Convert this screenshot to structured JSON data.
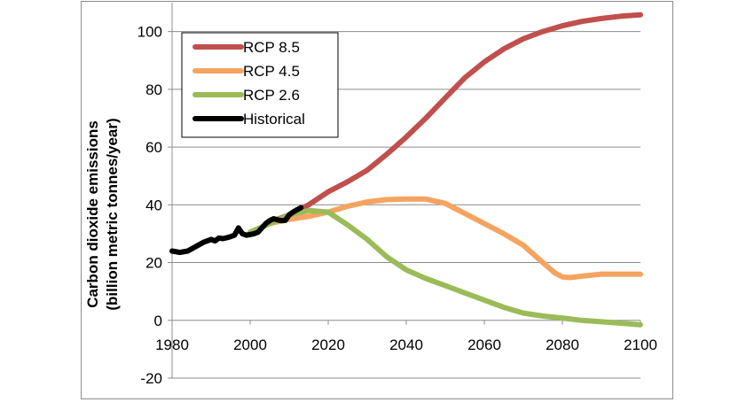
{
  "chart_data": {
    "type": "line",
    "title": "",
    "ylabel_line1": "Carbon dioxide emissions",
    "ylabel_line2": "(billion metric tonnes/year)",
    "xlabel": "",
    "xlim": [
      1980,
      2100
    ],
    "ylim": [
      -20,
      110
    ],
    "xticks": [
      1980,
      2000,
      2020,
      2040,
      2060,
      2080,
      2100
    ],
    "yticks": [
      -20,
      0,
      20,
      40,
      60,
      80,
      100
    ],
    "grid": "horizontal",
    "legend_position": "top-left",
    "series": [
      {
        "name": "RCP 8.5",
        "color": "#c0504d",
        "points": [
          [
            2005,
            34
          ],
          [
            2010,
            36.5
          ],
          [
            2015,
            40
          ],
          [
            2020,
            44.5
          ],
          [
            2025,
            48
          ],
          [
            2030,
            52
          ],
          [
            2035,
            57.5
          ],
          [
            2040,
            63.5
          ],
          [
            2045,
            70
          ],
          [
            2050,
            77
          ],
          [
            2055,
            84
          ],
          [
            2060,
            89.5
          ],
          [
            2065,
            94
          ],
          [
            2070,
            97.5
          ],
          [
            2075,
            100
          ],
          [
            2080,
            102
          ],
          [
            2085,
            103.5
          ],
          [
            2090,
            104.5
          ],
          [
            2095,
            105.3
          ],
          [
            2100,
            105.8
          ]
        ]
      },
      {
        "name": "RCP 4.5",
        "color": "#f4a460",
        "points": [
          [
            2000,
            30.5
          ],
          [
            2005,
            33.5
          ],
          [
            2010,
            35
          ],
          [
            2015,
            36
          ],
          [
            2020,
            37.5
          ],
          [
            2025,
            39.5
          ],
          [
            2030,
            41
          ],
          [
            2035,
            41.8
          ],
          [
            2040,
            42
          ],
          [
            2045,
            42
          ],
          [
            2050,
            40.5
          ],
          [
            2055,
            37
          ],
          [
            2060,
            33.5
          ],
          [
            2065,
            30
          ],
          [
            2070,
            26
          ],
          [
            2075,
            20
          ],
          [
            2078,
            16.5
          ],
          [
            2080,
            15
          ],
          [
            2082,
            14.8
          ],
          [
            2085,
            15.3
          ],
          [
            2090,
            16
          ],
          [
            2095,
            16
          ],
          [
            2100,
            16
          ]
        ]
      },
      {
        "name": "RCP 2.6",
        "color": "#9bbb59",
        "points": [
          [
            2000,
            30.5
          ],
          [
            2005,
            33.5
          ],
          [
            2010,
            36.5
          ],
          [
            2015,
            38
          ],
          [
            2020,
            37.5
          ],
          [
            2025,
            33
          ],
          [
            2030,
            28
          ],
          [
            2035,
            22
          ],
          [
            2040,
            17.5
          ],
          [
            2045,
            14.5
          ],
          [
            2050,
            12
          ],
          [
            2055,
            9.5
          ],
          [
            2060,
            7
          ],
          [
            2065,
            4.5
          ],
          [
            2070,
            2.5
          ],
          [
            2075,
            1.5
          ],
          [
            2080,
            0.8
          ],
          [
            2085,
            0
          ],
          [
            2090,
            -0.5
          ],
          [
            2095,
            -1
          ],
          [
            2100,
            -1.5
          ]
        ]
      },
      {
        "name": "Historical",
        "color": "#000000",
        "points": [
          [
            1980,
            24
          ],
          [
            1982,
            23.5
          ],
          [
            1984,
            24
          ],
          [
            1986,
            25.5
          ],
          [
            1988,
            27
          ],
          [
            1990,
            28
          ],
          [
            1991,
            27.5
          ],
          [
            1992,
            28.5
          ],
          [
            1993,
            28.3
          ],
          [
            1994,
            28.6
          ],
          [
            1995,
            29
          ],
          [
            1996,
            29.5
          ],
          [
            1997,
            32
          ],
          [
            1998,
            30
          ],
          [
            1999,
            29.5
          ],
          [
            2000,
            29.7
          ],
          [
            2001,
            30
          ],
          [
            2002,
            30.5
          ],
          [
            2003,
            32
          ],
          [
            2004,
            33.5
          ],
          [
            2005,
            34.5
          ],
          [
            2006,
            35.2
          ],
          [
            2007,
            34.8
          ],
          [
            2008,
            34.5
          ],
          [
            2009,
            34.6
          ],
          [
            2010,
            36.5
          ],
          [
            2011,
            37.5
          ],
          [
            2012,
            38.3
          ],
          [
            2013,
            39
          ]
        ]
      }
    ]
  }
}
